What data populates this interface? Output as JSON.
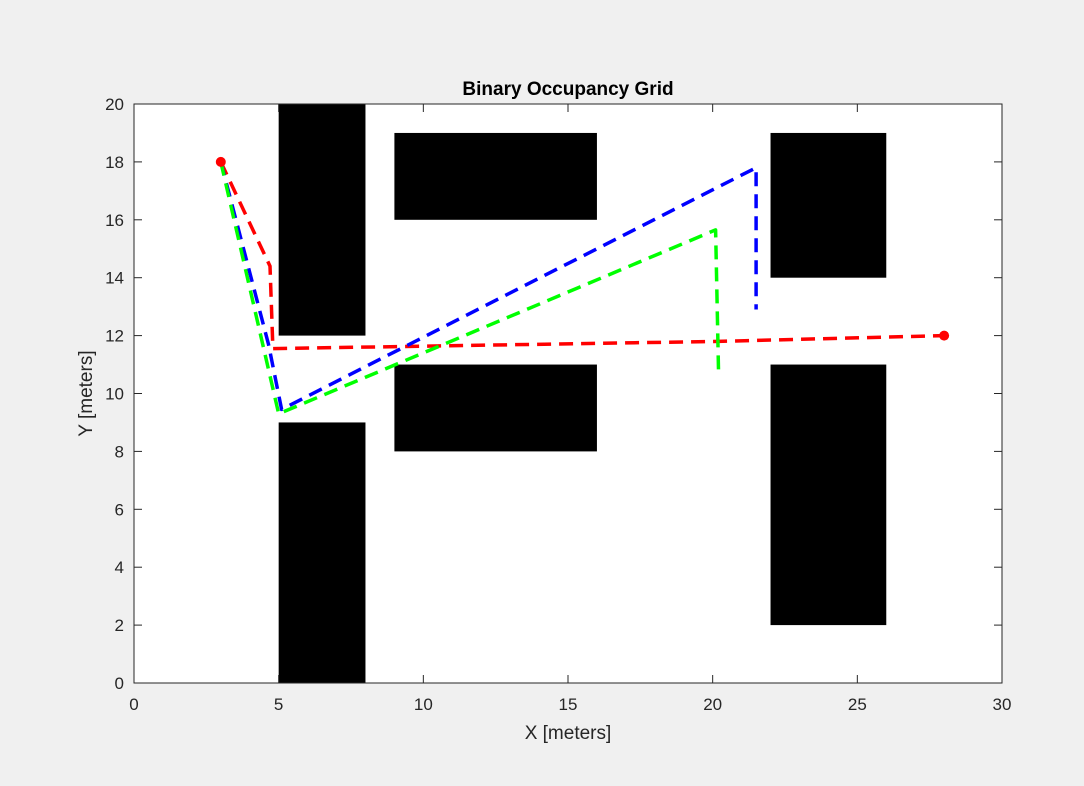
{
  "chart_data": {
    "type": "line",
    "title": "Binary Occupancy Grid",
    "xlabel": "X [meters]",
    "ylabel": "Y [meters]",
    "xlim": [
      0,
      30
    ],
    "ylim": [
      0,
      20
    ],
    "xticks": [
      0,
      5,
      10,
      15,
      20,
      25,
      30
    ],
    "yticks": [
      0,
      2,
      4,
      6,
      8,
      10,
      12,
      14,
      16,
      18,
      20
    ],
    "grid": false,
    "legend": null,
    "obstacles": [
      {
        "x": [
          5,
          8
        ],
        "y": [
          12,
          20
        ]
      },
      {
        "x": [
          5,
          8
        ],
        "y": [
          0,
          9
        ]
      },
      {
        "x": [
          9,
          16
        ],
        "y": [
          16,
          19
        ]
      },
      {
        "x": [
          9,
          16
        ],
        "y": [
          8,
          11
        ]
      },
      {
        "x": [
          22,
          26
        ],
        "y": [
          14,
          19
        ]
      },
      {
        "x": [
          22,
          26
        ],
        "y": [
          2,
          11
        ]
      }
    ],
    "series": [
      {
        "color": "#ff0000",
        "style": "dashed",
        "points": [
          [
            3,
            18
          ],
          [
            4.7,
            14.4
          ],
          [
            4.8,
            11.55
          ],
          [
            20.2,
            11.8
          ],
          [
            28,
            12
          ]
        ]
      },
      {
        "color": "#0000ff",
        "style": "dashed",
        "points": [
          [
            3,
            18
          ],
          [
            4.65,
            11.7
          ],
          [
            5.1,
            9.45
          ],
          [
            21.5,
            17.8
          ],
          [
            21.5,
            12.9
          ]
        ]
      },
      {
        "color": "#00ff00",
        "style": "dashed",
        "points": [
          [
            3,
            18
          ],
          [
            5,
            9.3
          ],
          [
            20.1,
            15.65
          ],
          [
            20.2,
            10.8
          ]
        ]
      }
    ],
    "markers": [
      {
        "x": 3,
        "y": 18,
        "color": "#ff0000"
      },
      {
        "x": 28,
        "y": 12,
        "color": "#ff0000"
      }
    ]
  }
}
